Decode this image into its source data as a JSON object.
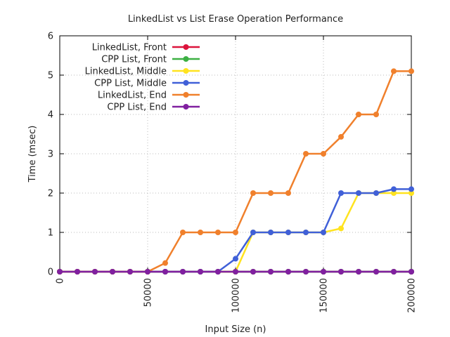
{
  "chart_data": {
    "type": "line",
    "title": "LinkedList vs List Erase Operation Performance",
    "xlabel": "Input Size (n)",
    "ylabel": "Time (msec)",
    "xlim": [
      0,
      200000
    ],
    "ylim": [
      0,
      6
    ],
    "xticks": [
      "0",
      "50000",
      "100000",
      "150000",
      "200000"
    ],
    "xtick_values": [
      0,
      50000,
      100000,
      150000,
      200000
    ],
    "yticks": [
      "0",
      "1",
      "2",
      "3",
      "4",
      "5",
      "6"
    ],
    "ytick_values": [
      0,
      1,
      2,
      3,
      4,
      5,
      6
    ],
    "grid": true,
    "legend_position": "top-left",
    "x": [
      0,
      10000,
      20000,
      30000,
      40000,
      50000,
      60000,
      70000,
      80000,
      90000,
      100000,
      110000,
      120000,
      130000,
      140000,
      150000,
      160000,
      170000,
      180000,
      190000,
      200000
    ],
    "series": [
      {
        "name": "LinkedList, Front",
        "color": "#dc143c",
        "values": [
          0,
          0,
          0,
          0,
          0,
          0,
          0,
          0,
          0,
          0,
          0,
          0,
          0,
          0,
          0,
          0,
          0,
          0,
          0,
          0,
          0
        ]
      },
      {
        "name": "CPP List, Front",
        "color": "#3cb043",
        "values": [
          0,
          0,
          0,
          0,
          0,
          0,
          0,
          0,
          0,
          0,
          0,
          0,
          0,
          0,
          0,
          0,
          0,
          0,
          0,
          0,
          0
        ]
      },
      {
        "name": "LinkedList, Middle",
        "color": "#ffe31f",
        "values": [
          0,
          0,
          0,
          0,
          0,
          0,
          0,
          0,
          0,
          0,
          0,
          1,
          1,
          1,
          1,
          1,
          1.1,
          2,
          2,
          2,
          2
        ]
      },
      {
        "name": "CPP List, Middle",
        "color": "#4060d8",
        "values": [
          0,
          0,
          0,
          0,
          0,
          0,
          0,
          0,
          0,
          0,
          0.33,
          1,
          1,
          1,
          1,
          1,
          2,
          2,
          2,
          2.1,
          2.1
        ]
      },
      {
        "name": "LinkedList, End",
        "color": "#f0802c",
        "values": [
          0,
          0,
          0,
          0,
          0,
          0,
          0.22,
          1,
          1,
          1,
          1,
          2,
          2,
          2,
          3,
          3,
          3.43,
          4,
          4,
          5.1,
          5.1
        ]
      },
      {
        "name": "CPP List, End",
        "color": "#8020a0",
        "values": [
          0,
          0,
          0,
          0,
          0,
          0,
          0,
          0,
          0,
          0,
          0,
          0,
          0,
          0,
          0,
          0,
          0,
          0,
          0,
          0,
          0
        ]
      }
    ]
  }
}
